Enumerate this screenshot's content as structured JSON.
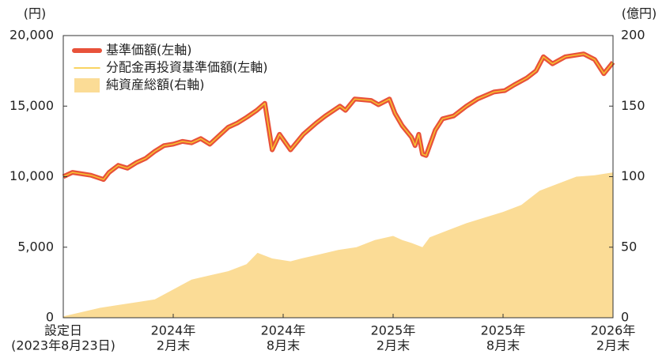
{
  "chart_data": {
    "type": "line",
    "y_label": "(円)",
    "y2_label": "(億円)",
    "xlim": [
      0,
      30
    ],
    "xticks": [
      {
        "value": 0,
        "label": [
          "設定日",
          "(2023年8月23日)"
        ]
      },
      {
        "value": 6,
        "label": [
          "2024年",
          "2月末"
        ]
      },
      {
        "value": 12,
        "label": [
          "2024年",
          "8月末"
        ]
      },
      {
        "value": 18,
        "label": [
          "2025年",
          "2月末"
        ]
      },
      {
        "value": 24,
        "label": [
          "2025年",
          "8月末"
        ]
      },
      {
        "value": 30,
        "label": [
          "2026年",
          "2月末"
        ]
      }
    ],
    "ylim": [
      0,
      20000
    ],
    "yticks": [
      0,
      {
        "value": 5000,
        "label": "5,000"
      },
      {
        "value": 10000,
        "label": "10,000"
      },
      {
        "value": 15000,
        "label": "15,000"
      },
      {
        "value": 20000,
        "label": "20,000"
      }
    ],
    "y2lim": [
      0,
      200
    ],
    "y2ticks": [
      0,
      50,
      100,
      150,
      200
    ],
    "series": [
      {
        "name": "純資産総額(右軸)",
        "kind": "area",
        "axis": "y2",
        "color": "#fbdc96",
        "x": [
          0,
          1,
          2,
          3,
          4,
          5,
          6,
          7,
          8,
          9,
          10,
          10.6,
          11.4,
          12.4,
          13,
          14,
          15,
          16,
          17,
          18,
          18.5,
          19,
          19.6,
          20,
          21,
          22,
          23,
          24,
          25,
          26,
          27,
          28,
          29,
          30
        ],
        "values": [
          1,
          4,
          7,
          9,
          11,
          13,
          20,
          27,
          30,
          33,
          38,
          46,
          42,
          40,
          42,
          45,
          48,
          50,
          55,
          58,
          55,
          53,
          50,
          57,
          62,
          67,
          71,
          75,
          80,
          90,
          95,
          100,
          101,
          103
        ]
      },
      {
        "name": "基準価額(左軸)",
        "kind": "thick",
        "color": "#e8523a",
        "x": [
          0,
          0.5,
          1,
          1.5,
          2.2,
          2.5,
          3,
          3.5,
          4,
          4.5,
          5,
          5.5,
          6,
          6.5,
          7,
          7.5,
          8,
          8.5,
          9,
          9.5,
          10,
          10.56,
          11,
          11.4,
          11.8,
          12.4,
          13.1,
          13.8,
          14.3,
          15.1,
          15.4,
          15.9,
          16.8,
          17.2,
          17.8,
          18.1,
          18.5,
          19,
          19.2,
          19.4,
          19.6,
          19.8,
          20.3,
          20.7,
          21.3,
          22,
          22.6,
          23.5,
          24.1,
          24.6,
          25.3,
          25.8,
          26.2,
          26.7,
          27.4,
          28.4,
          29,
          29.5,
          30
        ],
        "values": [
          10000,
          10300,
          10200,
          10100,
          9800,
          10300,
          10800,
          10600,
          11000,
          11300,
          11800,
          12200,
          12300,
          12500,
          12400,
          12700,
          12300,
          12900,
          13500,
          13800,
          14200,
          14700,
          15200,
          11900,
          13000,
          11900,
          13000,
          13800,
          14300,
          15000,
          14700,
          15500,
          15400,
          15100,
          15500,
          14500,
          13600,
          12800,
          12200,
          13000,
          11600,
          11500,
          13300,
          14100,
          14300,
          15000,
          15500,
          16000,
          16100,
          16500,
          17000,
          17500,
          18500,
          18000,
          18500,
          18700,
          18300,
          17300,
          18100
        ]
      },
      {
        "name": "分配金再投資基準価額(左軸)",
        "kind": "thin",
        "color": "#f7c52e",
        "x": [
          0,
          0.5,
          1,
          1.5,
          2.2,
          2.5,
          3,
          3.5,
          4,
          4.5,
          5,
          5.5,
          6,
          6.5,
          7,
          7.5,
          8,
          8.5,
          9,
          9.5,
          10,
          10.56,
          11,
          11.4,
          11.8,
          12.4,
          13.1,
          13.8,
          14.3,
          15.1,
          15.4,
          15.9,
          16.8,
          17.2,
          17.8,
          18.1,
          18.5,
          19,
          19.2,
          19.4,
          19.6,
          19.8,
          20.3,
          20.7,
          21.3,
          22,
          22.6,
          23.5,
          24.1,
          24.6,
          25.3,
          25.8,
          26.2,
          26.7,
          27.4,
          28.4,
          29,
          29.5,
          30
        ],
        "values": [
          10000,
          10300,
          10200,
          10100,
          9800,
          10300,
          10800,
          10600,
          11000,
          11300,
          11800,
          12200,
          12300,
          12500,
          12400,
          12700,
          12300,
          12900,
          13500,
          13800,
          14200,
          14700,
          15200,
          11900,
          13000,
          11900,
          13000,
          13800,
          14300,
          15000,
          14700,
          15500,
          15400,
          15100,
          15500,
          14500,
          13600,
          12800,
          12200,
          13000,
          11600,
          11500,
          13300,
          14100,
          14300,
          15000,
          15500,
          16000,
          16100,
          16500,
          17000,
          17500,
          18500,
          18000,
          18500,
          18700,
          18300,
          17300,
          18100
        ]
      }
    ]
  }
}
